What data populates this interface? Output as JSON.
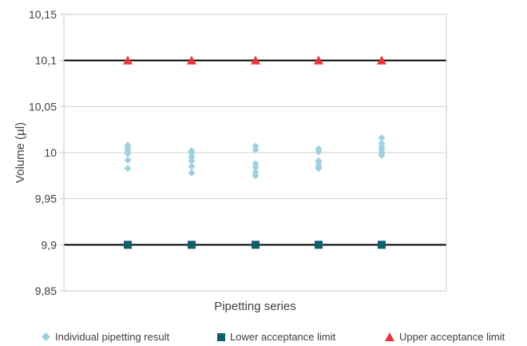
{
  "chart_data": {
    "type": "scatter",
    "xlabel": "Pipetting series",
    "ylabel": "Volume (µl)",
    "ylim": [
      9.85,
      10.15
    ],
    "yticks": [
      9.85,
      9.9,
      9.95,
      10.0,
      10.05,
      10.1,
      10.15
    ],
    "ytick_labels": [
      "9,85",
      "9,9",
      "9,95",
      "10",
      "10,05",
      "10,1",
      "10,15"
    ],
    "x": [
      1,
      2,
      3,
      4,
      5
    ],
    "grid": true,
    "legend_position": "bottom",
    "series": [
      {
        "name": "Individual pipetting result",
        "marker": "diamond",
        "color": "#9fd0df",
        "points": [
          [
            1,
            10.008
          ],
          [
            1,
            10.005
          ],
          [
            1,
            10.002
          ],
          [
            1,
            9.999
          ],
          [
            1,
            9.992
          ],
          [
            1,
            9.983
          ],
          [
            2,
            10.002
          ],
          [
            2,
            9.999
          ],
          [
            2,
            9.995
          ],
          [
            2,
            9.991
          ],
          [
            2,
            9.985
          ],
          [
            2,
            9.978
          ],
          [
            3,
            10.007
          ],
          [
            3,
            10.003
          ],
          [
            3,
            9.988
          ],
          [
            3,
            9.984
          ],
          [
            3,
            9.979
          ],
          [
            3,
            9.975
          ],
          [
            4,
            10.004
          ],
          [
            4,
            10.001
          ],
          [
            4,
            9.991
          ],
          [
            4,
            9.989
          ],
          [
            4,
            9.985
          ],
          [
            4,
            9.983
          ],
          [
            5,
            10.016
          ],
          [
            5,
            10.01
          ],
          [
            5,
            10.006
          ],
          [
            5,
            10.003
          ],
          [
            5,
            10.0
          ],
          [
            5,
            9.997
          ]
        ]
      },
      {
        "name": "Lower acceptance limit",
        "marker": "square",
        "color": "#0f5f72",
        "values": [
          9.9,
          9.9,
          9.9,
          9.9,
          9.9
        ]
      },
      {
        "name": "Upper acceptance limit",
        "marker": "triangle",
        "color": "#e8343a",
        "values": [
          10.1,
          10.1,
          10.1,
          10.1,
          10.1
        ]
      }
    ]
  }
}
